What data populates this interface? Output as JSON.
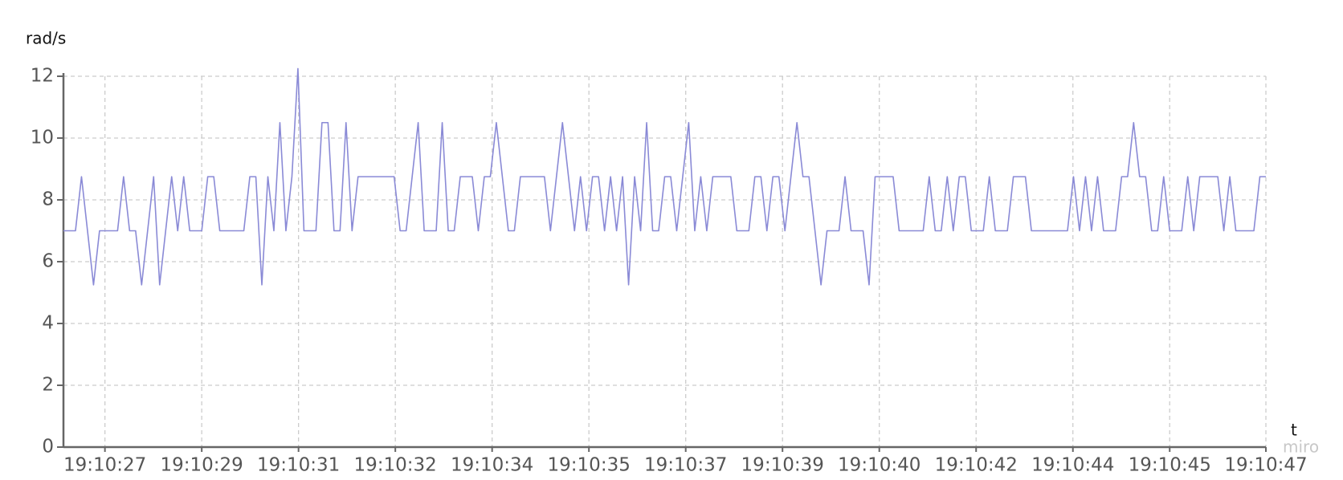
{
  "chart_data": {
    "type": "line",
    "y_label": "rad/s",
    "x_label": "t",
    "watermark": "miro",
    "color": "#8a8ad6",
    "grid": true,
    "xlim": [
      26.5,
      46.5
    ],
    "xticks": [
      {
        "value": 27.19,
        "label": "19:10:27"
      },
      {
        "value": 28.8,
        "label": "19:10:29"
      },
      {
        "value": 30.41,
        "label": "19:10:31"
      },
      {
        "value": 32.02,
        "label": "19:10:32"
      },
      {
        "value": 33.63,
        "label": "19:10:34"
      },
      {
        "value": 35.24,
        "label": "19:10:35"
      },
      {
        "value": 36.85,
        "label": "19:10:37"
      },
      {
        "value": 38.46,
        "label": "19:10:39"
      },
      {
        "value": 40.07,
        "label": "19:10:40"
      },
      {
        "value": 41.68,
        "label": "19:10:42"
      },
      {
        "value": 43.29,
        "label": "19:10:44"
      },
      {
        "value": 44.9,
        "label": "19:10:45"
      },
      {
        "value": 46.5,
        "label": "19:10:47"
      }
    ],
    "ylim": [
      0,
      12
    ],
    "yticks": [
      0,
      2,
      4,
      6,
      8,
      10,
      12
    ],
    "x": [
      26.5,
      26.6,
      26.7,
      26.8,
      26.9,
      27.0,
      27.1,
      27.2,
      27.3,
      27.4,
      27.5,
      27.6,
      27.7,
      27.8,
      27.9,
      28.0,
      28.1,
      28.2,
      28.3,
      28.4,
      28.5,
      28.6,
      28.7,
      28.8,
      28.9,
      29.0,
      29.1,
      29.2,
      29.3,
      29.4,
      29.5,
      29.6,
      29.7,
      29.8,
      29.9,
      30.0,
      30.1,
      30.2,
      30.3,
      30.4,
      30.5,
      30.6,
      30.7,
      30.8,
      30.9,
      31.0,
      31.1,
      31.2,
      31.3,
      31.4,
      31.5,
      31.6,
      31.7,
      31.8,
      31.9,
      32.0,
      32.1,
      32.2,
      32.3,
      32.4,
      32.5,
      32.6,
      32.7,
      32.8,
      32.9,
      33.0,
      33.1,
      33.2,
      33.3,
      33.4,
      33.5,
      33.6,
      33.7,
      33.8,
      33.9,
      34.0,
      34.1,
      34.2,
      34.3,
      34.4,
      34.5,
      34.6,
      34.7,
      34.8,
      34.9,
      35.0,
      35.1,
      35.2,
      35.3,
      35.4,
      35.5,
      35.6,
      35.7,
      35.8,
      35.9,
      36.0,
      36.1,
      36.2,
      36.3,
      36.4,
      36.5,
      36.6,
      36.7,
      36.8,
      36.9,
      37.0,
      37.1,
      37.2,
      37.3,
      37.4,
      37.5,
      37.6,
      37.7,
      37.8,
      37.9,
      38.0,
      38.1,
      38.2,
      38.3,
      38.4,
      38.5,
      38.6,
      38.7,
      38.8,
      38.9,
      39.0,
      39.1,
      39.2,
      39.3,
      39.4,
      39.5,
      39.6,
      39.7,
      39.8,
      39.9,
      40.0,
      40.1,
      40.2,
      40.3,
      40.4,
      40.5,
      40.6,
      40.7,
      40.8,
      40.9,
      41.0,
      41.1,
      41.2,
      41.3,
      41.4,
      41.5,
      41.6,
      41.7,
      41.8,
      41.9,
      42.0,
      42.1,
      42.2,
      42.3,
      42.4,
      42.5,
      42.6,
      42.7,
      42.8,
      42.9,
      43.0,
      43.1,
      43.2,
      43.3,
      43.4,
      43.5,
      43.6,
      43.7,
      43.8,
      43.9,
      44.0,
      44.1,
      44.2,
      44.3,
      44.4,
      44.5,
      44.6,
      44.7,
      44.8,
      44.9,
      45.0,
      45.1,
      45.2,
      45.3,
      45.4,
      45.5,
      45.6,
      45.7,
      45.8,
      45.9,
      46.0,
      46.1,
      46.2,
      46.3,
      46.4,
      46.5
    ],
    "values": [
      7,
      7,
      7,
      8.75,
      7,
      5.25,
      7,
      7,
      7,
      7,
      8.75,
      7,
      7,
      5.25,
      7,
      8.75,
      5.25,
      7,
      8.75,
      7,
      8.75,
      7,
      7,
      7,
      8.75,
      8.75,
      7,
      7,
      7,
      7,
      7,
      8.75,
      8.75,
      5.25,
      8.75,
      7,
      10.5,
      7,
      8.75,
      12.25,
      7,
      7,
      7,
      10.5,
      10.5,
      7,
      7,
      10.5,
      7,
      8.75,
      8.75,
      8.75,
      8.75,
      8.75,
      8.75,
      8.75,
      7,
      7,
      8.75,
      10.5,
      7,
      7,
      7,
      10.5,
      7,
      7,
      8.75,
      8.75,
      8.75,
      7,
      8.75,
      8.75,
      10.5,
      8.75,
      7,
      7,
      8.75,
      8.75,
      8.75,
      8.75,
      8.75,
      7,
      8.75,
      10.5,
      8.75,
      7,
      8.75,
      7,
      8.75,
      8.75,
      7,
      8.75,
      7,
      8.75,
      5.25,
      8.75,
      7,
      10.5,
      7,
      7,
      8.75,
      8.75,
      7,
      8.75,
      10.5,
      7,
      8.75,
      7,
      8.75,
      8.75,
      8.75,
      8.75,
      7,
      7,
      7,
      8.75,
      8.75,
      7,
      8.75,
      8.75,
      7,
      8.75,
      10.5,
      8.75,
      8.75,
      7,
      5.25,
      7,
      7,
      7,
      8.75,
      7,
      7,
      7,
      5.25,
      8.75,
      8.75,
      8.75,
      8.75,
      7,
      7,
      7,
      7,
      7,
      8.75,
      7,
      7,
      8.75,
      7,
      8.75,
      8.75,
      7,
      7,
      7,
      8.75,
      7,
      7,
      7,
      8.75,
      8.75,
      8.75,
      7,
      7,
      7,
      7,
      7,
      7,
      7,
      8.75,
      7,
      8.75,
      7,
      8.75,
      7,
      7,
      7,
      8.75,
      8.75,
      10.5,
      8.75,
      8.75,
      7,
      7,
      8.75,
      7,
      7,
      7,
      8.75,
      7,
      8.75,
      8.75,
      8.75,
      8.75,
      7,
      8.75,
      7,
      7,
      7,
      7,
      8.75,
      8.75
    ]
  }
}
